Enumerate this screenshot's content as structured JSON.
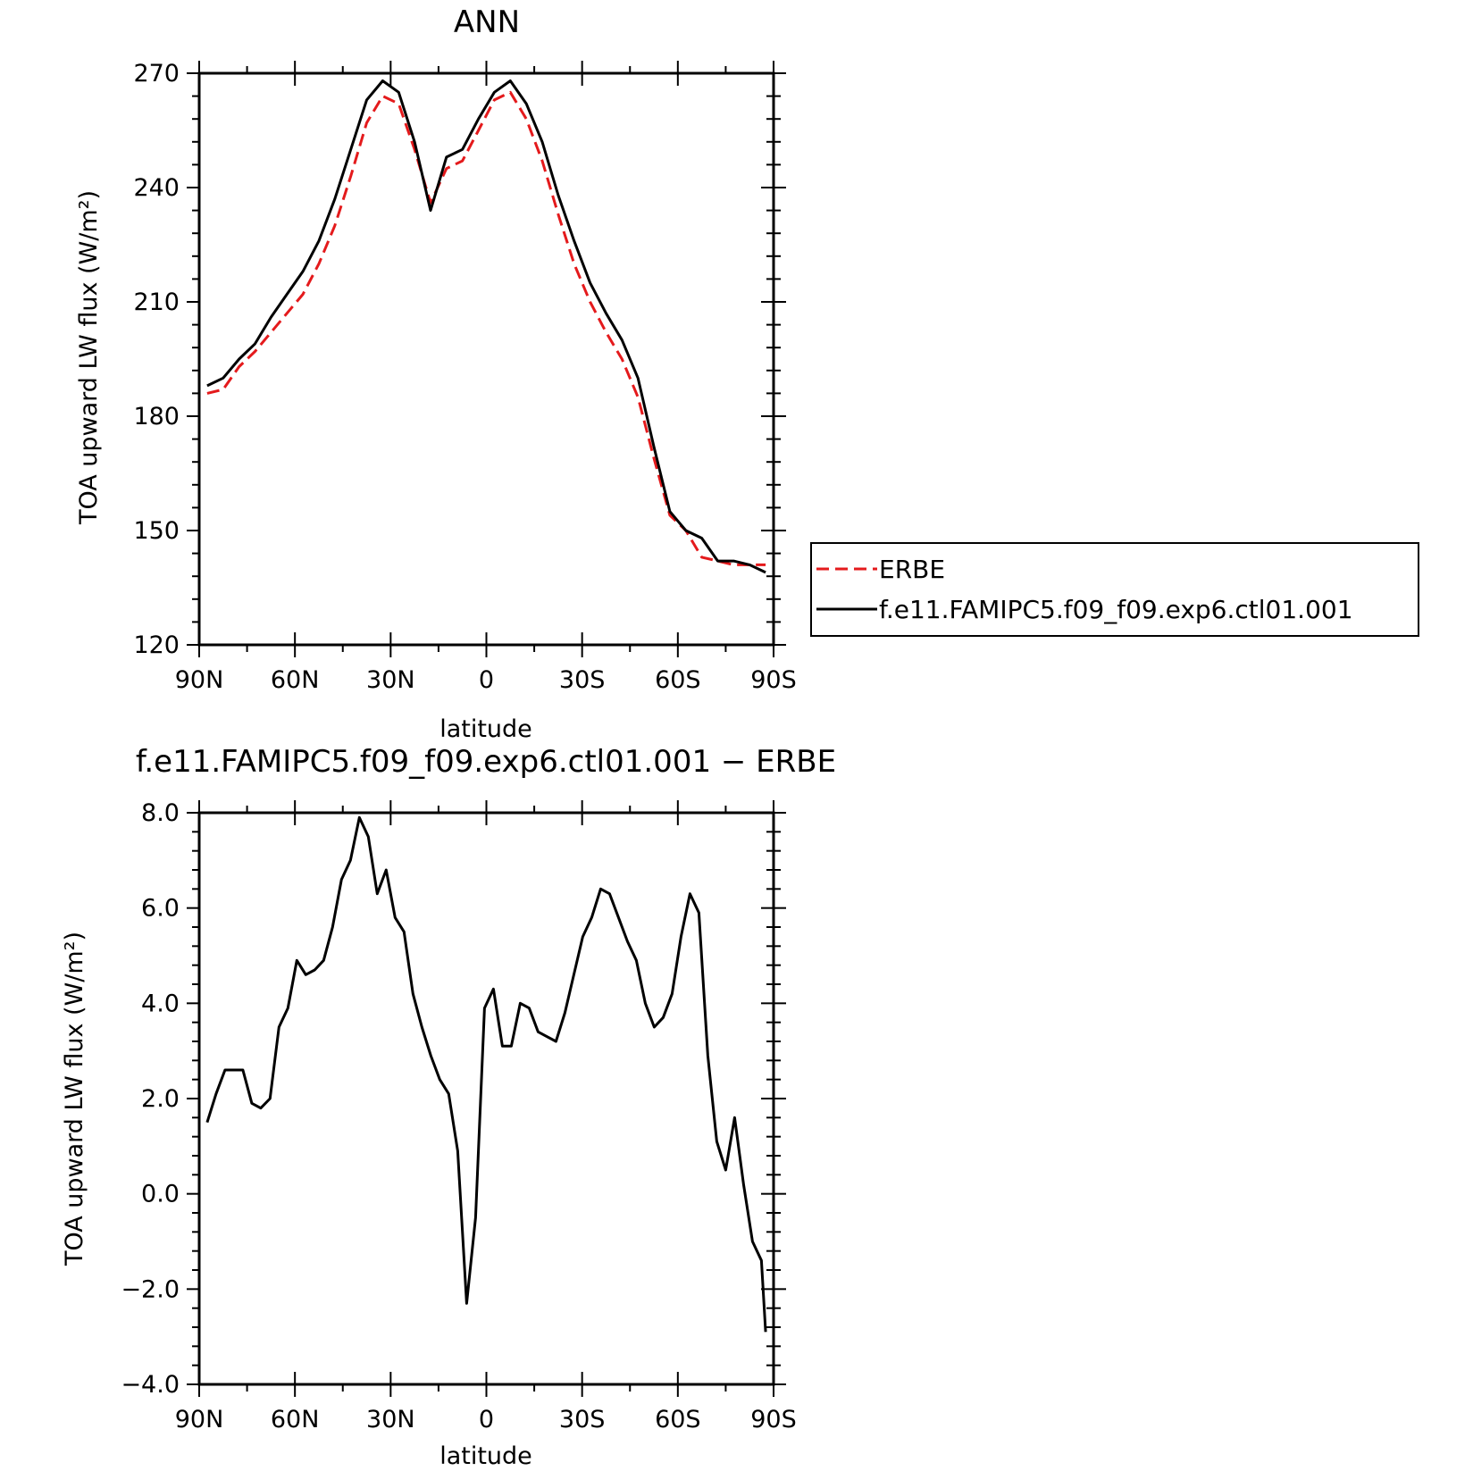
{
  "chart_data": [
    {
      "type": "line",
      "title": "ANN",
      "xlabel": "latitude",
      "ylabel": "TOA upward LW flux (W/m²)",
      "xlim": [
        90,
        -90
      ],
      "ylim": [
        120,
        270
      ],
      "xticks": [
        90,
        60,
        30,
        0,
        -30,
        -60,
        -90
      ],
      "xtick_labels": [
        "90N",
        "60N",
        "30N",
        "0",
        "30S",
        "60S",
        "90S"
      ],
      "yticks": [
        120,
        150,
        180,
        210,
        240,
        270
      ],
      "ytick_labels": [
        "120",
        "150",
        "180",
        "210",
        "240",
        "270"
      ],
      "legend": {
        "placement": "right",
        "entries": [
          {
            "label": "ERBE",
            "color": "#e41a1c",
            "style": "dashed"
          },
          {
            "label": "f.e11.FAMIPC5.f09_f09.exp6.ctl01.001",
            "color": "#000000",
            "style": "solid"
          }
        ]
      },
      "series": [
        {
          "name": "ERBE",
          "color": "#e41a1c",
          "style": "dashed",
          "x": [
            87.5,
            82.5,
            77.5,
            72.5,
            67.5,
            62.5,
            57.5,
            52.5,
            47.5,
            42.5,
            37.5,
            32.5,
            27.5,
            22.5,
            17.5,
            12.5,
            7.5,
            2.5,
            -2.5,
            -7.5,
            -12.5,
            -17.5,
            -22.5,
            -27.5,
            -32.5,
            -37.5,
            -42.5,
            -47.5,
            -52.5,
            -57.5,
            -62.5,
            -67.5,
            -72.5,
            -77.5,
            -82.5,
            -87.5
          ],
          "y": [
            186,
            187,
            193,
            197,
            202,
            207,
            212,
            220,
            230,
            243,
            257,
            264,
            262,
            250,
            236,
            245,
            247,
            255,
            263,
            265,
            258,
            247,
            233,
            220,
            210,
            202,
            195,
            185,
            169,
            154,
            150,
            143,
            142,
            141,
            141,
            141
          ]
        },
        {
          "name": "f.e11.FAMIPC5.f09_f09.exp6.ctl01.001",
          "color": "#000000",
          "style": "solid",
          "x": [
            87.5,
            82.5,
            77.5,
            72.5,
            67.5,
            62.5,
            57.5,
            52.5,
            47.5,
            42.5,
            37.5,
            32.5,
            27.5,
            22.5,
            17.5,
            12.5,
            7.5,
            2.5,
            -2.5,
            -7.5,
            -12.5,
            -17.5,
            -22.5,
            -27.5,
            -32.5,
            -37.5,
            -42.5,
            -47.5,
            -52.5,
            -57.5,
            -62.5,
            -67.5,
            -72.5,
            -77.5,
            -82.5,
            -87.5
          ],
          "y": [
            188,
            190,
            195,
            199,
            206,
            212,
            218,
            226,
            237,
            250,
            263,
            268,
            265,
            252,
            234,
            248,
            250,
            258,
            265,
            268,
            262,
            252,
            238,
            226,
            215,
            207,
            200,
            190,
            172,
            155,
            150,
            148,
            142,
            142,
            141,
            139
          ]
        }
      ]
    },
    {
      "type": "line",
      "title": "f.e11.FAMIPC5.f09_f09.exp6.ctl01.001 − ERBE",
      "xlabel": "latitude",
      "ylabel": "TOA upward LW flux (W/m²)",
      "xlim": [
        90,
        -90
      ],
      "ylim": [
        -4,
        8
      ],
      "xticks": [
        90,
        60,
        30,
        0,
        -30,
        -60,
        -90
      ],
      "xtick_labels": [
        "90N",
        "60N",
        "30N",
        "0",
        "30S",
        "60S",
        "90S"
      ],
      "yticks": [
        -4,
        -2,
        0,
        2,
        4,
        6,
        8
      ],
      "ytick_labels": [
        "−4.0",
        "−2.0",
        "0.0",
        "2.0",
        "4.0",
        "6.0",
        "8.0"
      ],
      "series": [
        {
          "color": "#000000",
          "style": "solid",
          "x": [
            87.5,
            84.7,
            81.9,
            79.1,
            76.3,
            73.5,
            70.7,
            67.8,
            65.0,
            62.2,
            59.4,
            56.6,
            53.8,
            51.0,
            48.2,
            45.4,
            42.6,
            39.8,
            37.0,
            34.2,
            31.4,
            28.6,
            25.8,
            23.0,
            20.2,
            17.4,
            14.6,
            11.8,
            9.0,
            6.2,
            3.4,
            0.6,
            -2.2,
            -5.0,
            -7.8,
            -10.6,
            -13.4,
            -16.2,
            -19.0,
            -21.8,
            -24.6,
            -27.4,
            -30.2,
            -33.0,
            -35.8,
            -38.6,
            -41.4,
            -44.2,
            -47.0,
            -49.8,
            -52.6,
            -55.4,
            -58.2,
            -61.0,
            -63.8,
            -66.6,
            -69.4,
            -72.2,
            -75.0,
            -77.8,
            -80.6,
            -83.4,
            -86.2,
            -87.5
          ],
          "y": [
            1.5,
            2.1,
            2.6,
            2.6,
            2.6,
            1.9,
            1.8,
            2.0,
            3.5,
            3.9,
            4.9,
            4.6,
            4.7,
            4.9,
            5.6,
            6.6,
            7.0,
            7.9,
            7.5,
            6.3,
            6.8,
            5.8,
            5.5,
            4.2,
            3.5,
            2.9,
            2.4,
            2.1,
            0.9,
            -2.3,
            -0.5,
            3.9,
            4.3,
            3.1,
            3.1,
            4.0,
            3.9,
            3.4,
            3.3,
            3.2,
            3.8,
            4.6,
            5.4,
            5.8,
            6.4,
            6.3,
            5.8,
            5.3,
            4.9,
            4.0,
            3.5,
            3.7,
            4.2,
            5.4,
            6.3,
            5.9,
            2.9,
            1.1,
            0.5,
            1.6,
            0.2,
            -1.0,
            -1.4,
            -2.9
          ]
        }
      ]
    }
  ]
}
